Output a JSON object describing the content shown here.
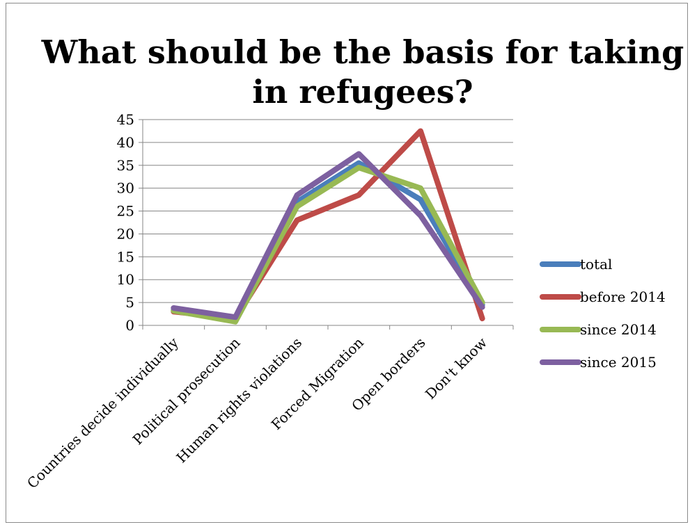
{
  "chart_data": {
    "type": "line",
    "title": "What should be the basis for taking in refugees?",
    "title_lines": [
      "What should be the basis for taking",
      "in refugees?"
    ],
    "categories": [
      "Countries decide individually",
      "Political prosecution",
      "Human rights violations",
      "Forced Migration",
      "Open borders",
      "Don't know"
    ],
    "ylim": [
      0,
      45
    ],
    "yticks": [
      0,
      5,
      10,
      15,
      20,
      25,
      30,
      35,
      40,
      45
    ],
    "grid": true,
    "legend_position": "right",
    "series": [
      {
        "name": "total",
        "color": "#4a7ebb",
        "values": [
          3.3,
          1.5,
          27.0,
          35.5,
          27.5,
          4.5
        ]
      },
      {
        "name": "before 2014",
        "color": "#be4b48",
        "values": [
          3.0,
          1.5,
          23.0,
          28.5,
          42.5,
          1.5
        ]
      },
      {
        "name": "since 2014",
        "color": "#98b954",
        "values": [
          3.2,
          0.8,
          26.0,
          34.5,
          30.0,
          5.0
        ]
      },
      {
        "name": "since 2015",
        "color": "#7d60a0",
        "values": [
          3.8,
          1.8,
          28.5,
          37.5,
          24.0,
          4.0
        ]
      }
    ]
  }
}
